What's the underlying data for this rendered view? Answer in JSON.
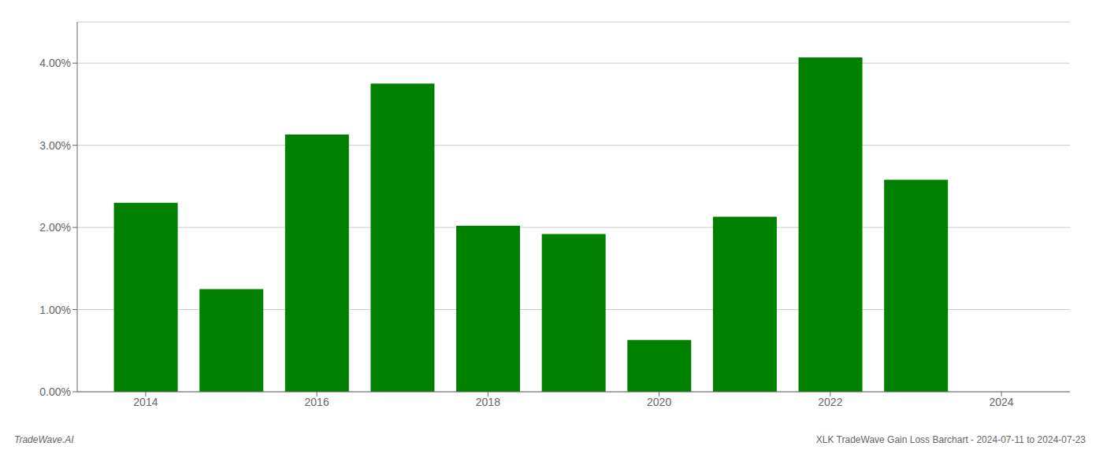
{
  "chart_data": {
    "type": "bar",
    "x": [
      2014,
      2015,
      2016,
      2017,
      2018,
      2019,
      2020,
      2021,
      2022,
      2023
    ],
    "values": [
      0.023,
      0.0125,
      0.0313,
      0.0375,
      0.0202,
      0.0192,
      0.0063,
      0.0213,
      0.0407,
      0.0258
    ],
    "color": "#008000",
    "xlim": [
      2013.2,
      2024.8
    ],
    "xticks": [
      2014,
      2016,
      2018,
      2020,
      2022,
      2024
    ],
    "ylim": [
      0,
      0.045
    ],
    "yticks": [
      {
        "value": 0.0,
        "label": "0.00%"
      },
      {
        "value": 0.01,
        "label": "1.00%"
      },
      {
        "value": 0.02,
        "label": "2.00%"
      },
      {
        "value": 0.03,
        "label": "3.00%"
      },
      {
        "value": 0.04,
        "label": "4.00%"
      }
    ],
    "grid": true,
    "annotations": [
      "TradeWave.AI",
      "XLK TradeWave Gain Loss Barchart - 2024-07-11 to 2024-07-23"
    ]
  }
}
